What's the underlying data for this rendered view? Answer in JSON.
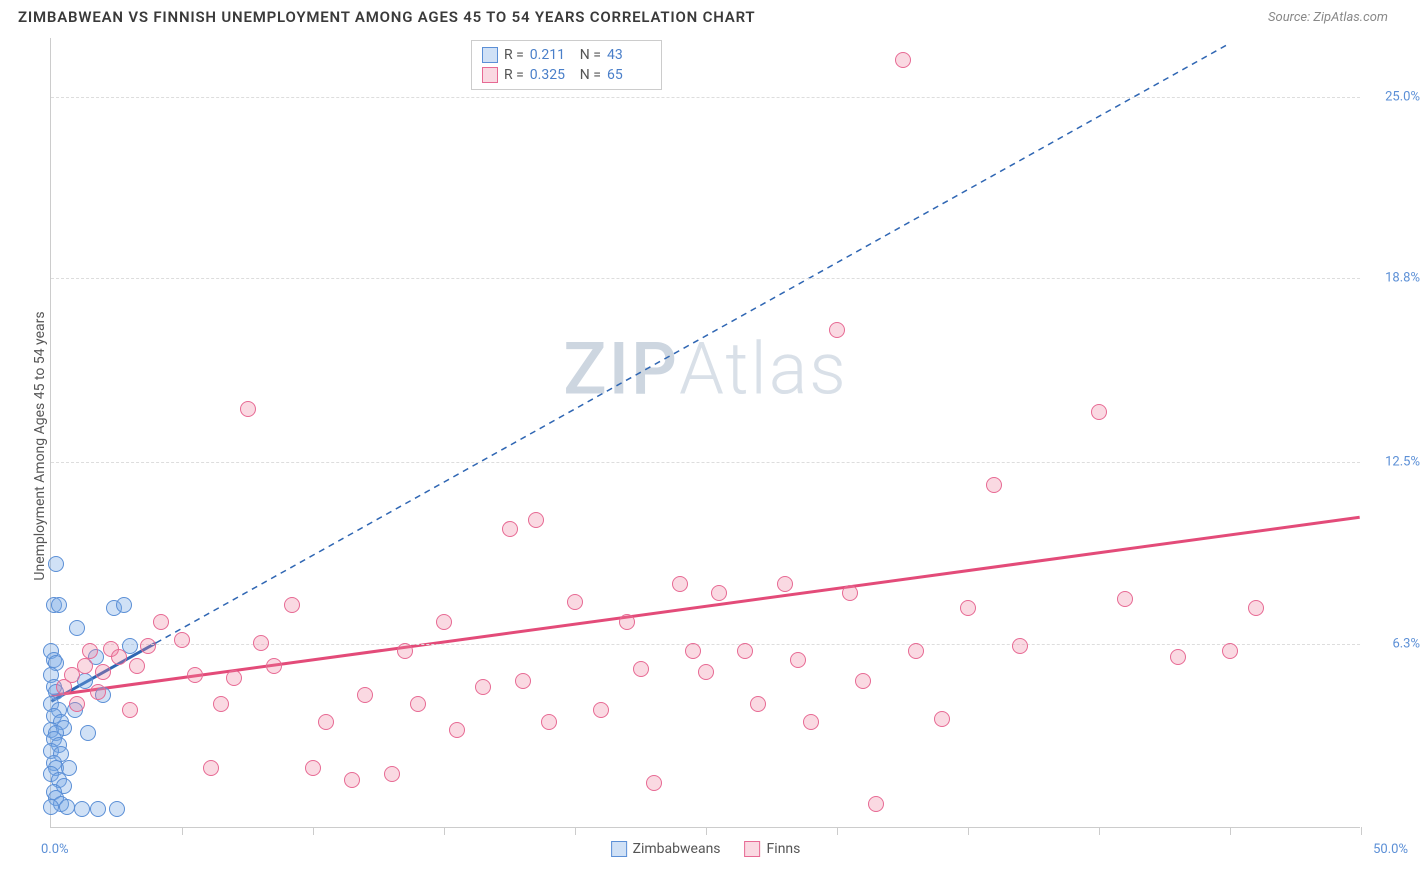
{
  "title": "ZIMBABWEAN VS FINNISH UNEMPLOYMENT AMONG AGES 45 TO 54 YEARS CORRELATION CHART",
  "source": "Source: ZipAtlas.com",
  "y_axis_label": "Unemployment Among Ages 45 to 54 years",
  "watermark_a": "ZIP",
  "watermark_b": "Atlas",
  "chart": {
    "type": "scatter",
    "background_color": "#ffffff",
    "grid_color": "#dddddd",
    "axis_color": "#cccccc",
    "xlim": [
      0,
      50
    ],
    "ylim": [
      0,
      27
    ],
    "x_min_label": "0.0%",
    "x_max_label": "50.0%",
    "y_ticks": [
      {
        "v": 6.3,
        "label": "6.3%"
      },
      {
        "v": 12.5,
        "label": "12.5%"
      },
      {
        "v": 18.8,
        "label": "18.8%"
      },
      {
        "v": 25.0,
        "label": "25.0%"
      }
    ],
    "x_tick_positions": [
      5,
      10,
      15,
      20,
      25,
      30,
      35,
      40,
      45,
      50
    ],
    "tick_label_color": "#5b8fd6",
    "tick_label_fontsize": 13,
    "series": [
      {
        "key": "zimbabweans",
        "label": "Zimbabweans",
        "R": "0.211",
        "N": "43",
        "fill": "rgba(120,170,230,0.35)",
        "stroke": "#5b8fd6",
        "trend_color": "#2f66b3",
        "trend_dash": "none",
        "trend_width": 3,
        "trend_ext_dash": "6,5",
        "trend_ext_width": 1.5,
        "trend": {
          "x1": 0,
          "y1": 4.3,
          "x2": 4.0,
          "y2": 6.3,
          "ext_x2": 45,
          "ext_y2": 26.8
        },
        "marker_radius": 8,
        "points": [
          [
            0.2,
            9.0
          ],
          [
            0.1,
            7.6
          ],
          [
            0.3,
            7.6
          ],
          [
            0.0,
            6.0
          ],
          [
            0.1,
            5.7
          ],
          [
            0.2,
            5.6
          ],
          [
            0.0,
            5.2
          ],
          [
            0.1,
            4.8
          ],
          [
            0.2,
            4.6
          ],
          [
            0.0,
            4.2
          ],
          [
            0.3,
            4.0
          ],
          [
            0.1,
            3.8
          ],
          [
            0.4,
            3.6
          ],
          [
            0.0,
            3.3
          ],
          [
            0.5,
            3.4
          ],
          [
            0.2,
            3.2
          ],
          [
            0.1,
            3.0
          ],
          [
            0.3,
            2.8
          ],
          [
            0.0,
            2.6
          ],
          [
            0.4,
            2.5
          ],
          [
            0.1,
            2.2
          ],
          [
            0.2,
            2.0
          ],
          [
            0.0,
            1.8
          ],
          [
            0.3,
            1.6
          ],
          [
            0.5,
            1.4
          ],
          [
            0.1,
            1.2
          ],
          [
            0.2,
            1.0
          ],
          [
            0.4,
            0.8
          ],
          [
            0.0,
            0.7
          ],
          [
            0.6,
            0.7
          ],
          [
            1.2,
            0.6
          ],
          [
            1.8,
            0.6
          ],
          [
            2.5,
            0.6
          ],
          [
            0.9,
            4.0
          ],
          [
            1.3,
            5.0
          ],
          [
            1.7,
            5.8
          ],
          [
            2.4,
            7.5
          ],
          [
            3.0,
            6.2
          ],
          [
            1.0,
            6.8
          ],
          [
            1.4,
            3.2
          ],
          [
            2.0,
            4.5
          ],
          [
            0.7,
            2.0
          ],
          [
            2.8,
            7.6
          ]
        ]
      },
      {
        "key": "finns",
        "label": "Finns",
        "R": "0.325",
        "N": "65",
        "fill": "rgba(240,130,160,0.30)",
        "stroke": "#e76a94",
        "trend_color": "#e34b79",
        "trend_dash": "none",
        "trend_width": 3,
        "trend": {
          "x1": 0,
          "y1": 4.5,
          "x2": 50,
          "y2": 10.6
        },
        "marker_radius": 8,
        "points": [
          [
            0.5,
            4.8
          ],
          [
            0.8,
            5.2
          ],
          [
            1.0,
            4.2
          ],
          [
            1.3,
            5.5
          ],
          [
            1.5,
            6.0
          ],
          [
            1.8,
            4.6
          ],
          [
            2.0,
            5.3
          ],
          [
            2.3,
            6.1
          ],
          [
            2.6,
            5.8
          ],
          [
            3.0,
            4.0
          ],
          [
            3.3,
            5.5
          ],
          [
            3.7,
            6.2
          ],
          [
            4.2,
            7.0
          ],
          [
            5.0,
            6.4
          ],
          [
            5.5,
            5.2
          ],
          [
            6.1,
            2.0
          ],
          [
            6.5,
            4.2
          ],
          [
            7.0,
            5.1
          ],
          [
            7.5,
            14.3
          ],
          [
            8.0,
            6.3
          ],
          [
            8.5,
            5.5
          ],
          [
            9.2,
            7.6
          ],
          [
            10.0,
            2.0
          ],
          [
            10.5,
            3.6
          ],
          [
            11.5,
            1.6
          ],
          [
            12.0,
            4.5
          ],
          [
            13.0,
            1.8
          ],
          [
            14.0,
            4.2
          ],
          [
            15.0,
            7.0
          ],
          [
            15.5,
            3.3
          ],
          [
            16.5,
            4.8
          ],
          [
            17.5,
            10.2
          ],
          [
            18.0,
            5.0
          ],
          [
            18.5,
            10.5
          ],
          [
            19.0,
            3.6
          ],
          [
            20.0,
            7.7
          ],
          [
            21.0,
            4.0
          ],
          [
            22.0,
            7.0
          ],
          [
            22.5,
            5.4
          ],
          [
            23.0,
            1.5
          ],
          [
            24.0,
            8.3
          ],
          [
            25.0,
            5.3
          ],
          [
            25.5,
            8.0
          ],
          [
            26.5,
            6.0
          ],
          [
            27.0,
            4.2
          ],
          [
            28.0,
            8.3
          ],
          [
            28.5,
            5.7
          ],
          [
            29.0,
            3.6
          ],
          [
            30.0,
            17.0
          ],
          [
            30.5,
            8.0
          ],
          [
            31.0,
            5.0
          ],
          [
            31.5,
            0.8
          ],
          [
            32.5,
            26.2
          ],
          [
            33.0,
            6.0
          ],
          [
            34.0,
            3.7
          ],
          [
            35.0,
            7.5
          ],
          [
            36.0,
            11.7
          ],
          [
            37.0,
            6.2
          ],
          [
            40.0,
            14.2
          ],
          [
            41.0,
            7.8
          ],
          [
            43.0,
            5.8
          ],
          [
            45.0,
            6.0
          ],
          [
            46.0,
            7.5
          ],
          [
            24.5,
            6.0
          ],
          [
            13.5,
            6.0
          ]
        ]
      }
    ],
    "stat_box": {
      "r_label": "R =",
      "n_label": "N ="
    },
    "legend_labels": [
      "Zimbabweans",
      "Finns"
    ]
  }
}
